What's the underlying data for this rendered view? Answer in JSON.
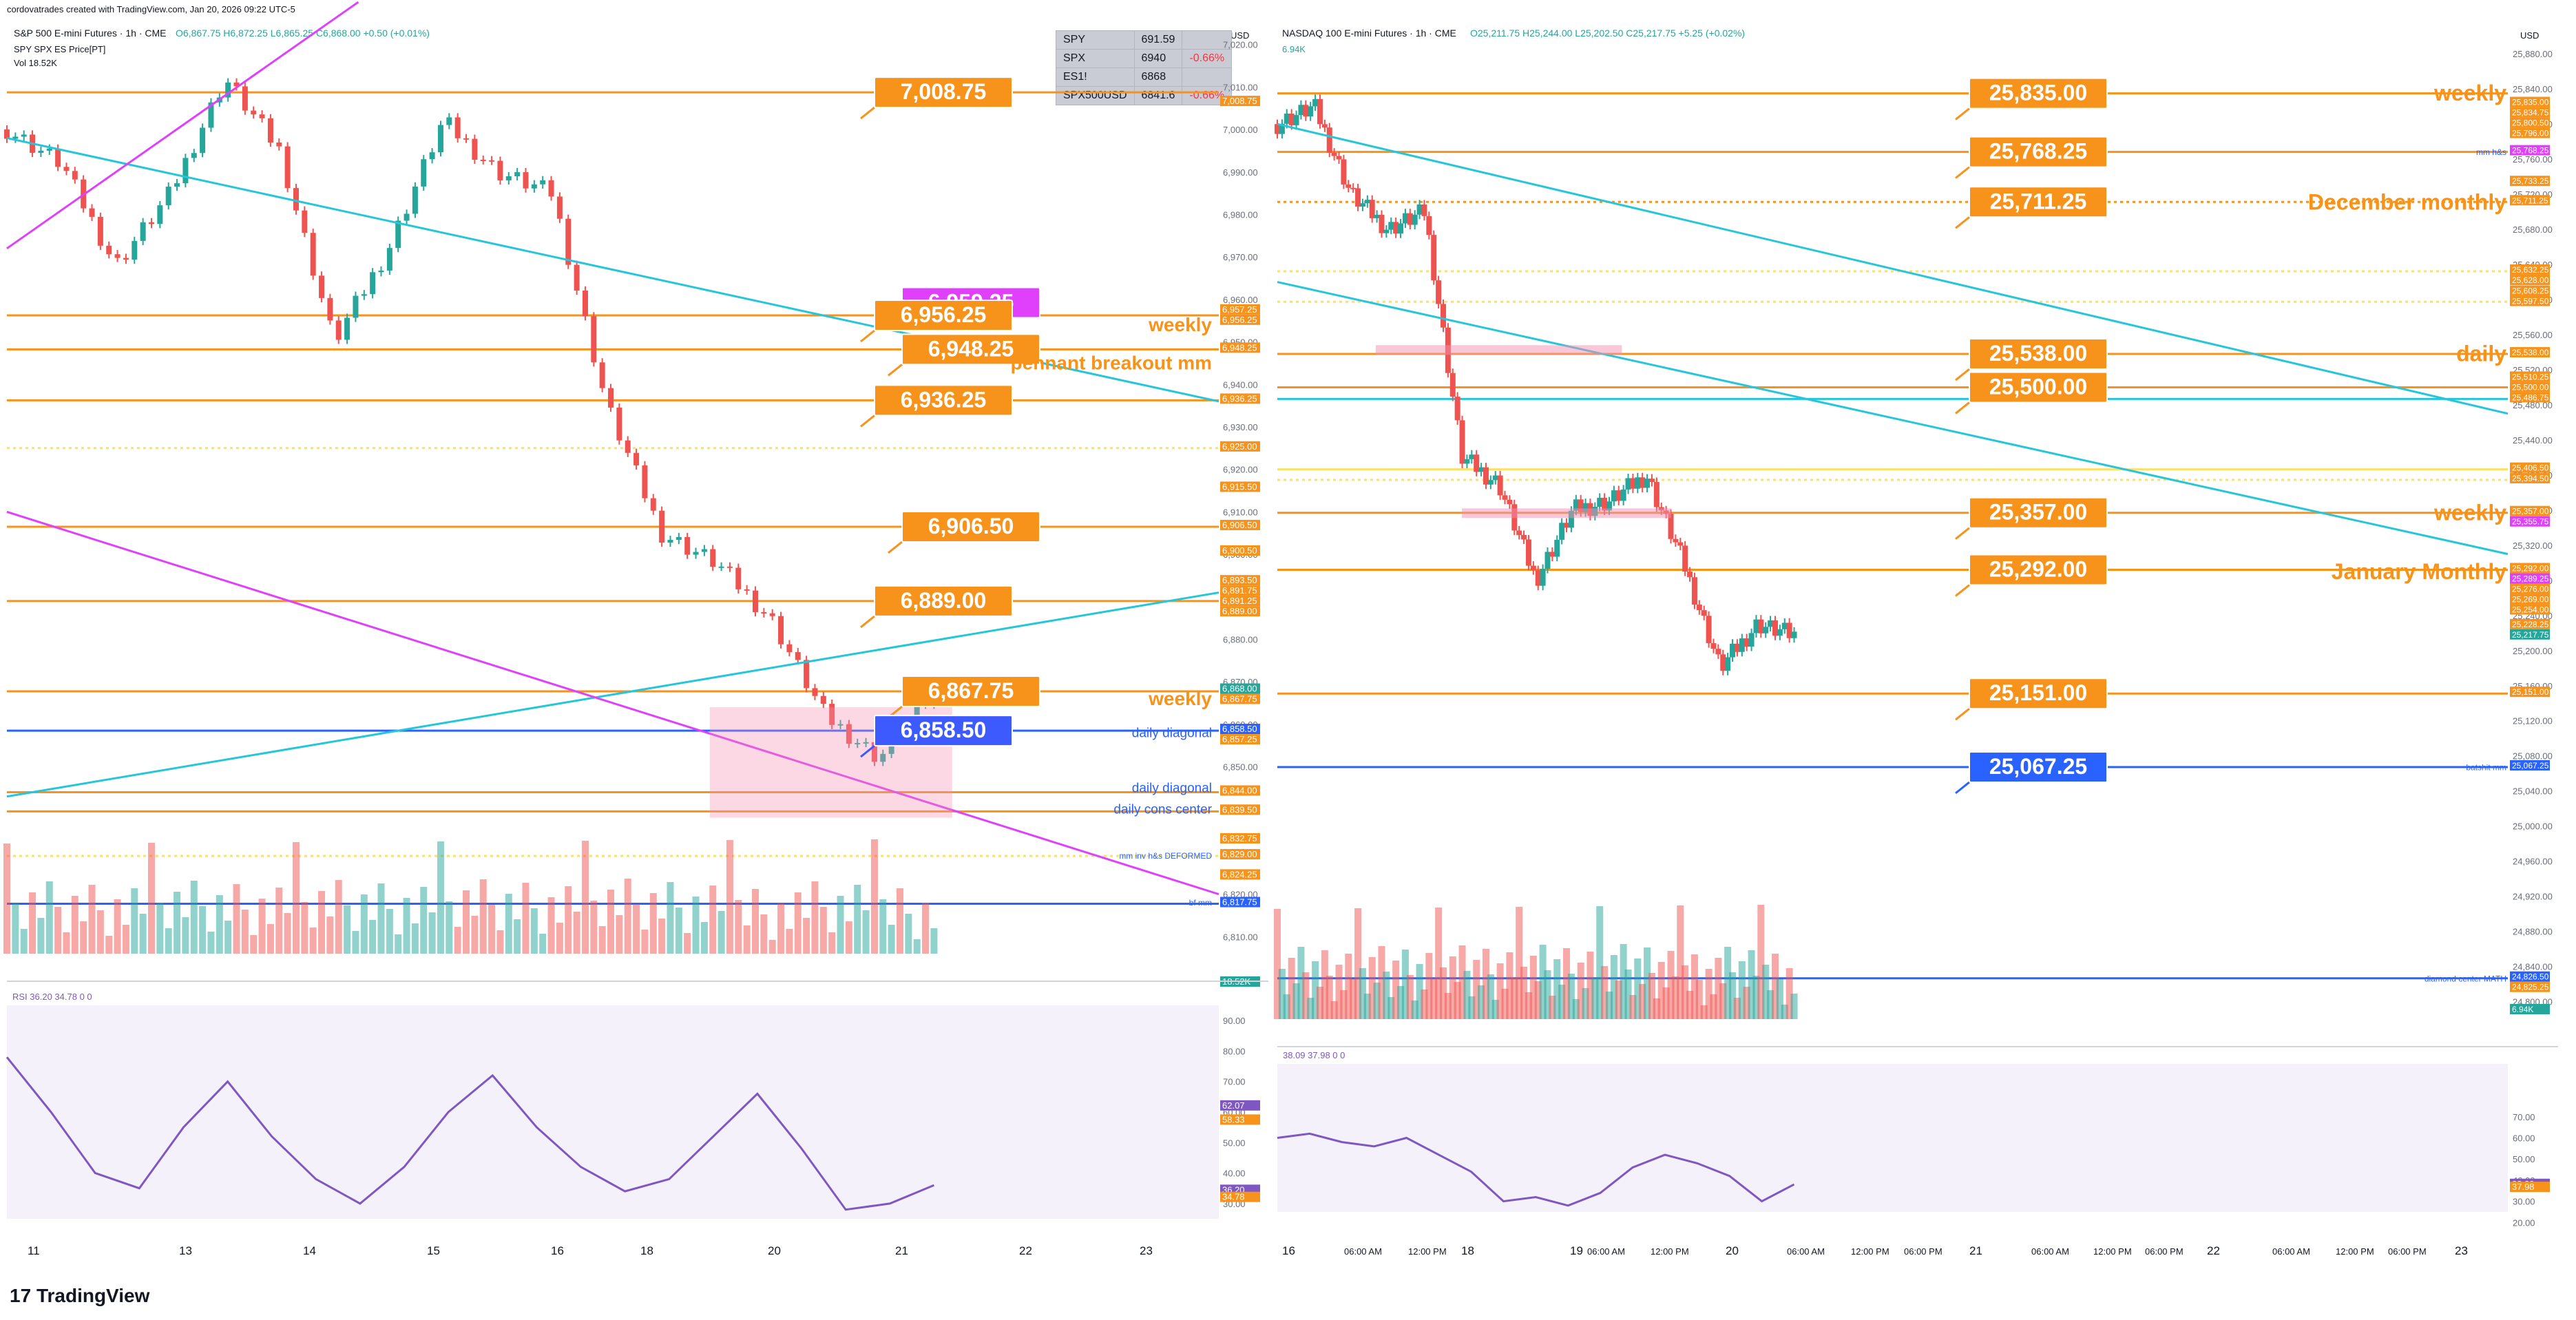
{
  "header": {
    "credit": "cordovatrades created with TradingView.com, Jan 20, 2026 09:22 UTC-5",
    "left_title": "S&P 500 E-mini Futures · 1h · CME",
    "left_ohlc": "O6,867.75 H6,872.25 L6,865.25 C6,868.00 +0.50 (+0.01%)",
    "left_sub1": "SPY SPX ES Price[PT]",
    "left_sub2": "Vol 18.52K",
    "right_title": "NASDAQ 100 E-mini Futures · 1h · CME",
    "right_ohlc": "O25,211.75 H25,244.00 L25,202.50 C25,217.75 +5.25 (+0.02%)",
    "right_sub": "6.94K",
    "usd_left": "USD",
    "usd_right": "USD",
    "brand": "TradingView"
  },
  "spy_table": [
    {
      "sym": "SPY",
      "val": "691.59",
      "chg": ""
    },
    {
      "sym": "SPX",
      "val": "6940",
      "chg": "-0.66%"
    },
    {
      "sym": "ES1!",
      "val": "6868",
      "chg": ""
    },
    {
      "sym": "SPX500USD",
      "val": "6841.6",
      "chg": "-0.66%"
    }
  ],
  "colors": {
    "up": "#26a69a",
    "down": "#ef5350",
    "orange": "#f7931a",
    "cyan": "#26c6da",
    "magenta": "#e040fb",
    "blue": "#2962ff",
    "rsi": "#7e57c2",
    "pink": "#f48fb1",
    "yellow": "#ffe066"
  },
  "chart_data": [
    {
      "type": "line",
      "title": "S&P 500 E-mini Futures · 1h · CME",
      "price_axis": [
        "7,020.00",
        "7,010.00",
        "7,000.00",
        "6,990.00",
        "6,980.00",
        "6,970.00",
        "6,960.00",
        "6,950.00",
        "6,940.00",
        "6,930.00",
        "6,920.00",
        "6,910.00",
        "6,900.00",
        "6,890.00",
        "6,880.00",
        "6,870.00",
        "6,860.00",
        "6,850.00",
        "6,840.00",
        "6,830.00",
        "6,820.00",
        "6,810.00"
      ],
      "ylim": [
        6806,
        7024
      ],
      "x_ticks": [
        "11",
        "13",
        "14",
        "15",
        "16",
        "18",
        "20",
        "21",
        "22",
        "23"
      ],
      "x": [
        0,
        0.045,
        0.09,
        0.135,
        0.18,
        0.225,
        0.27,
        0.315,
        0.36,
        0.405,
        0.45,
        0.495,
        0.54,
        0.585,
        0.63,
        0.675,
        0.72,
        0.765
      ],
      "close": [
        7000,
        6992,
        6968,
        6985,
        7012,
        6995,
        6950,
        6972,
        7002,
        6990,
        6985,
        6935,
        6905,
        6898,
        6885,
        6862,
        6852,
        6868
      ],
      "levels": [
        {
          "label": "7,008.75",
          "price": 7008.75,
          "style": "solid",
          "color": "#f7931a"
        },
        {
          "label": "6,956.25",
          "price": 6956.25,
          "style": "solid",
          "color": "#f7931a"
        },
        {
          "label": "6,948.25",
          "price": 6948.25,
          "style": "solid",
          "color": "#f7931a"
        },
        {
          "label": "6,936.25",
          "price": 6936.25,
          "style": "solid",
          "color": "#f7931a"
        },
        {
          "label": "6,925.00",
          "price": 6925,
          "style": "dotted",
          "color": "#ffe066"
        },
        {
          "label": "6,906.50",
          "price": 6906.5,
          "style": "solid",
          "color": "#f7931a"
        },
        {
          "label": "6,889.00",
          "price": 6889,
          "style": "solid",
          "color": "#f7931a"
        },
        {
          "label": "6,867.75",
          "price": 6867.75,
          "style": "solid",
          "color": "#f7931a"
        },
        {
          "label": "6,858.50",
          "price": 6858.5,
          "style": "solid",
          "color": "#2962ff"
        },
        {
          "label": "6,844.00",
          "price": 6844,
          "style": "solid",
          "color": "#f7931a"
        },
        {
          "label": "6,839.50",
          "price": 6839.5,
          "style": "solid",
          "color": "#f7931a"
        },
        {
          "label": "6,829.00",
          "price": 6829,
          "style": "dotted",
          "color": "#ffe066"
        },
        {
          "label": "6,817.75",
          "price": 6817.75,
          "style": "solid",
          "color": "#2962ff"
        }
      ],
      "callouts": [
        {
          "text": "7,008.75",
          "price": 7008.75,
          "color": "#f7931a"
        },
        {
          "text": "6,959.25",
          "price": 6959.25,
          "color": "#e040fb"
        },
        {
          "text": "6,956.25",
          "price": 6956.25,
          "color": "#f7931a"
        },
        {
          "text": "6,948.25",
          "price": 6948.25,
          "color": "#f7931a"
        },
        {
          "text": "6,936.25",
          "price": 6936.25,
          "color": "#f7931a"
        },
        {
          "text": "6,906.50",
          "price": 6906.5,
          "color": "#f7931a"
        },
        {
          "text": "6,889.00",
          "price": 6889,
          "color": "#f7931a"
        },
        {
          "text": "6,867.75",
          "price": 6867.75,
          "color": "#f7931a"
        },
        {
          "text": "6,858.50",
          "price": 6858.5,
          "color": "#3d5afe"
        }
      ],
      "annotations": [
        {
          "text": "weekly",
          "price": 6954,
          "color": "#f7931a",
          "size": 28
        },
        {
          "text": "pennant breakout mm",
          "price": 6945,
          "color": "#f7931a",
          "size": 28
        },
        {
          "text": "weekly",
          "price": 6866,
          "color": "#f7931a",
          "size": 28
        },
        {
          "text": "daily diagonal",
          "price": 6858,
          "color": "#2962ff",
          "size": 19
        },
        {
          "text": "daily diagonal",
          "price": 6845,
          "color": "#2962ff",
          "size": 19
        },
        {
          "text": "daily cons center",
          "price": 6840,
          "color": "#2962ff",
          "size": 19
        },
        {
          "text": "mm inv h&s DEFORMED",
          "price": 6829,
          "color": "#2962ff",
          "size": 12
        },
        {
          "text": "bf mm",
          "price": 6818,
          "color": "#2962ff",
          "size": 12
        }
      ],
      "axis_tags": [
        "7,008.75",
        "6,957.25",
        "6,956.25",
        "6,948.25",
        "6,936.25",
        "6,925.00",
        "6,915.50",
        "6,906.50",
        "6,900.50",
        "6,893.50",
        "6,891.75",
        "6,891.25",
        "6,889.00",
        "6,868.00",
        "6,867.75",
        "6,858.50",
        "6,857.25",
        "6,844.00",
        "6,839.50",
        "6,832.75",
        "6,829.00",
        "6,824.25",
        "6,817.75",
        "18.52K"
      ],
      "rsi": {
        "label": "RSI 36.20 34.78 0 0",
        "axis": [
          "90.00",
          "80.00",
          "70.00",
          "60.00",
          "50.00",
          "40.00",
          "30.00"
        ],
        "tags": [
          "62.07",
          "58.33",
          "36.20",
          "34.78"
        ],
        "values": [
          78,
          60,
          40,
          35,
          55,
          70,
          52,
          38,
          30,
          42,
          60,
          72,
          55,
          42,
          34,
          38,
          52,
          66,
          48,
          28,
          30,
          36
        ]
      }
    },
    {
      "type": "line",
      "title": "NASDAQ 100 E-mini Futures · 1h · CME",
      "price_axis": [
        "25,880.00",
        "25,840.00",
        "25,800.00",
        "25,760.00",
        "25,720.00",
        "25,680.00",
        "25,640.00",
        "25,600.00",
        "25,560.00",
        "25,520.00",
        "25,480.00",
        "25,440.00",
        "25,400.00",
        "25,360.00",
        "25,320.00",
        "25,280.00",
        "25,240.00",
        "25,200.00",
        "25,160.00",
        "25,120.00",
        "25,080.00",
        "25,040.00",
        "25,000.00",
        "24,960.00",
        "24,920.00",
        "24,880.00",
        "24,840.00",
        "24,800.00"
      ],
      "ylim": [
        24780,
        25910
      ],
      "x_ticks": [
        "16",
        "06:00 AM",
        "12:00 PM",
        "18",
        "19",
        "06:00 AM",
        "12:00 PM",
        "20",
        "06:00 AM",
        "12:00 PM",
        "06:00 PM",
        "21",
        "06:00 AM",
        "12:00 PM",
        "06:00 PM",
        "22",
        "06:00 AM",
        "12:00 PM",
        "06:00 PM",
        "23"
      ],
      "x": [
        0,
        0.03,
        0.06,
        0.09,
        0.12,
        0.15,
        0.18,
        0.21,
        0.24,
        0.27,
        0.3,
        0.33,
        0.36,
        0.39,
        0.42
      ],
      "close": [
        25800,
        25820,
        25720,
        25680,
        25700,
        25420,
        25390,
        25280,
        25360,
        25370,
        25400,
        25300,
        25180,
        25230,
        25217
      ],
      "levels": [
        {
          "label": "25,835.00",
          "price": 25835,
          "style": "solid",
          "color": "#f7931a"
        },
        {
          "label": "25,768.25",
          "price": 25768.25,
          "style": "solid",
          "color": "#f7931a"
        },
        {
          "label": "25,711.25",
          "price": 25711.25,
          "style": "dotted",
          "color": "#f7931a"
        },
        {
          "label": "25,632.25",
          "price": 25632.25,
          "style": "dotted",
          "color": "#ffe066"
        },
        {
          "label": "25,597.50",
          "price": 25597.5,
          "style": "dotted",
          "color": "#ffe066"
        },
        {
          "label": "25,538.00",
          "price": 25538,
          "style": "solid",
          "color": "#f7931a"
        },
        {
          "label": "25,500.00",
          "price": 25500,
          "style": "solid",
          "color": "#f7931a"
        },
        {
          "label": "25,486.75",
          "price": 25486.75,
          "style": "solid",
          "color": "#26c6da"
        },
        {
          "label": "25,406.50",
          "price": 25406.5,
          "style": "solid",
          "color": "#ffe066"
        },
        {
          "label": "25,394.50",
          "price": 25394.5,
          "style": "dotted",
          "color": "#ffe066"
        },
        {
          "label": "25,357.00",
          "price": 25357,
          "style": "solid",
          "color": "#f7931a"
        },
        {
          "label": "25,292.00",
          "price": 25292,
          "style": "solid",
          "color": "#f7931a"
        },
        {
          "label": "25,151.00",
          "price": 25151,
          "style": "solid",
          "color": "#f7931a"
        },
        {
          "label": "25,067.25",
          "price": 25067.25,
          "style": "solid",
          "color": "#2962ff"
        },
        {
          "label": "24,826.50",
          "price": 24826.5,
          "style": "solid",
          "color": "#2962ff"
        }
      ],
      "callouts": [
        {
          "text": "25,835.00",
          "price": 25835,
          "color": "#f7931a"
        },
        {
          "text": "25,768.25",
          "price": 25768.25,
          "color": "#f7931a"
        },
        {
          "text": "25,711.25",
          "price": 25711.25,
          "color": "#f7931a"
        },
        {
          "text": "25,538.00",
          "price": 25538,
          "color": "#f7931a"
        },
        {
          "text": "25,500.00",
          "price": 25500,
          "color": "#f7931a"
        },
        {
          "text": "25,357.00",
          "price": 25357,
          "color": "#f7931a"
        },
        {
          "text": "25,292.00",
          "price": 25292,
          "color": "#f7931a"
        },
        {
          "text": "25,151.00",
          "price": 25151,
          "color": "#f7931a"
        },
        {
          "text": "25,067.25",
          "price": 25067.25,
          "color": "#2962ff"
        }
      ],
      "annotations": [
        {
          "text": "weekly",
          "price": 25835,
          "color": "#f7931a",
          "size": 32
        },
        {
          "text": "December monthly",
          "price": 25711,
          "color": "#f7931a",
          "size": 32
        },
        {
          "text": "daily",
          "price": 25538,
          "color": "#f7931a",
          "size": 32
        },
        {
          "text": "weekly",
          "price": 25357,
          "color": "#f7931a",
          "size": 32
        },
        {
          "text": "January Monthly",
          "price": 25290,
          "color": "#f7931a",
          "size": 32
        },
        {
          "text": "mm h&s",
          "price": 25768,
          "color": "#2962ff",
          "size": 12
        },
        {
          "text": "batshit mm",
          "price": 25067,
          "color": "#2962ff",
          "size": 12
        },
        {
          "text": "diamond center MATH",
          "price": 24826,
          "color": "#2962ff",
          "size": 12
        }
      ],
      "axis_tags": [
        "25,835.00",
        "25,834.75",
        "25,800.50",
        "25,796.00",
        "25,768.25",
        "25,733.25",
        "25,711.25",
        "25,632.25",
        "25,628.00",
        "25,608.25",
        "25,597.50",
        "25,538.00",
        "25,510.25",
        "25,500.00",
        "25,486.75",
        "25,406.50",
        "25,394.50",
        "25,357.00",
        "25,355.75",
        "25,292.00",
        "25,289.25",
        "25,276.00",
        "25,269.00",
        "25,254.00",
        "25,228.25",
        "25,217.75",
        "25,151.00",
        "25,067.25",
        "24,826.50",
        "24,825.25",
        "6.94K"
      ],
      "rsi": {
        "label": "38.09 37.98 0 0",
        "axis": [
          "70.00",
          "60.00",
          "50.00",
          "40.00",
          "30.00",
          "20.00"
        ],
        "tags": [
          "38.09",
          "37.98"
        ],
        "values": [
          60,
          62,
          58,
          56,
          60,
          52,
          44,
          30,
          32,
          28,
          34,
          46,
          52,
          48,
          42,
          30,
          38
        ]
      }
    }
  ]
}
